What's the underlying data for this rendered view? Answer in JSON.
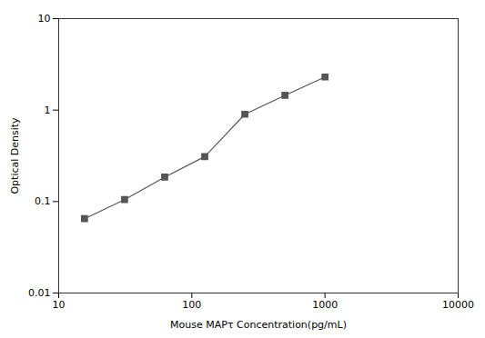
{
  "chart_data": {
    "type": "line",
    "x": [
      15.625,
      31.25,
      62.5,
      125,
      250,
      500,
      1000
    ],
    "values": [
      0.065,
      0.105,
      0.185,
      0.31,
      0.9,
      1.45,
      2.3
    ],
    "xlabel": "Mouse MAPτ Concentration(pg/mL)",
    "ylabel": "Optical Density",
    "xlim": [
      10,
      10000
    ],
    "ylim": [
      0.01,
      10
    ],
    "xticks": [
      10,
      100,
      1000,
      10000
    ],
    "yticks": [
      0.01,
      0.1,
      1,
      10
    ],
    "log": true,
    "grid": false,
    "marker": "square",
    "color": "#555555"
  }
}
